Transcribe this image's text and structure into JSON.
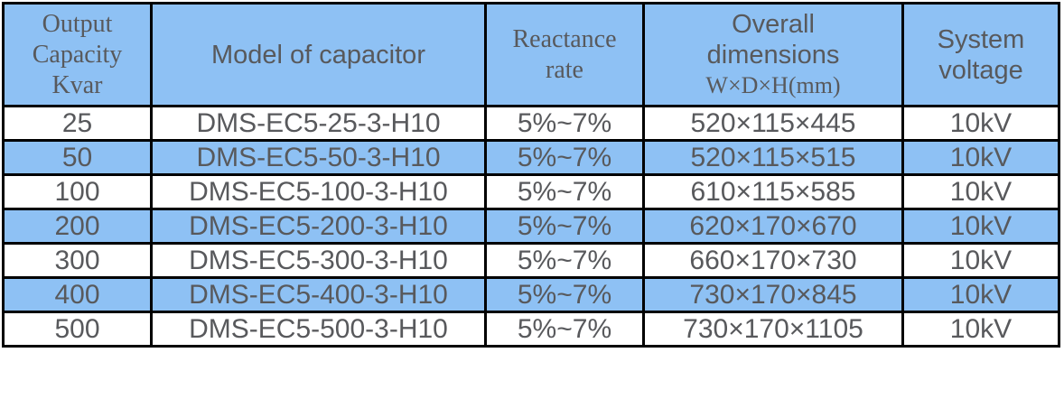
{
  "table": {
    "header": {
      "capacity": {
        "lines": [
          "Output",
          "Capacity",
          "Kvar"
        ]
      },
      "model": {
        "label": "Model of capacitor"
      },
      "reactance": {
        "lines": [
          "Reactance",
          "rate"
        ]
      },
      "dimensions": {
        "lines": [
          "Overall",
          "dimensions"
        ],
        "unit_line": "W×D×H(mm)"
      },
      "voltage": {
        "lines": [
          "System",
          "voltage"
        ]
      }
    },
    "rows": [
      {
        "capacity": "25",
        "model": "DMS-EC5-25-3-H10",
        "reactance": "5%~7%",
        "dimensions": "520×115×445",
        "voltage": "10kV",
        "highlight": false
      },
      {
        "capacity": "50",
        "model": "DMS-EC5-50-3-H10",
        "reactance": "5%~7%",
        "dimensions": "520×115×515",
        "voltage": "10kV",
        "highlight": true
      },
      {
        "capacity": "100",
        "model": "DMS-EC5-100-3-H10",
        "reactance": "5%~7%",
        "dimensions": "610×115×585",
        "voltage": "10kV",
        "highlight": false
      },
      {
        "capacity": "200",
        "model": "DMS-EC5-200-3-H10",
        "reactance": "5%~7%",
        "dimensions": "620×170×670",
        "voltage": "10kV",
        "highlight": true
      },
      {
        "capacity": "300",
        "model": "DMS-EC5-300-3-H10",
        "reactance": "5%~7%",
        "dimensions": "660×170×730",
        "voltage": "10kV",
        "highlight": false
      },
      {
        "capacity": "400",
        "model": "DMS-EC5-400-3-H10",
        "reactance": "5%~7%",
        "dimensions": "730×170×845",
        "voltage": "10kV",
        "highlight": true
      },
      {
        "capacity": "500",
        "model": "DMS-EC5-500-3-H10",
        "reactance": "5%~7%",
        "dimensions": "730×170×1105",
        "voltage": "10kV",
        "highlight": false
      }
    ]
  },
  "colors": {
    "page_bg": "#ffffff",
    "header_bg": "#8ec1f4",
    "alt_row_bg": "#8ec1f4",
    "border": "#000000",
    "text": "#58595c"
  }
}
